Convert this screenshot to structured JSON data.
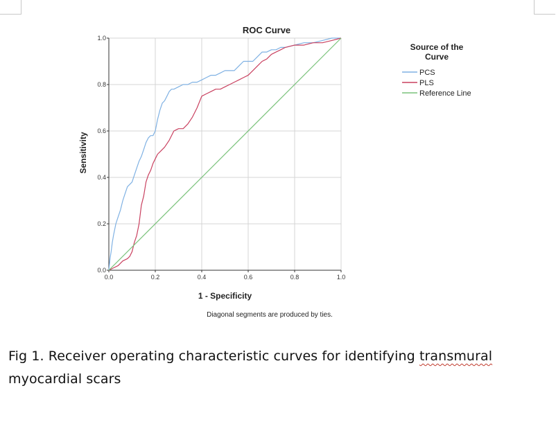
{
  "chart_data": {
    "type": "line",
    "title": "ROC Curve",
    "xlabel": "1 - Specificity",
    "ylabel": "Sensitivity",
    "xlim": [
      0,
      1
    ],
    "ylim": [
      0,
      1
    ],
    "xticks": [
      "0.0",
      "0.2",
      "0.4",
      "0.6",
      "0.8",
      "1.0"
    ],
    "yticks": [
      "0.0",
      "0.2",
      "0.4",
      "0.6",
      "0.8",
      "1.0"
    ],
    "grid": true,
    "legend_title": "Source of the Curve",
    "legend_position": "right",
    "footnote": "Diagonal segments are produced by ties.",
    "series": [
      {
        "name": "PCS",
        "color": "#7fb1e3",
        "x": [
          0,
          0.005,
          0.01,
          0.015,
          0.02,
          0.03,
          0.04,
          0.05,
          0.06,
          0.07,
          0.08,
          0.09,
          0.1,
          0.11,
          0.12,
          0.13,
          0.14,
          0.15,
          0.16,
          0.17,
          0.18,
          0.19,
          0.2,
          0.21,
          0.22,
          0.23,
          0.24,
          0.25,
          0.26,
          0.27,
          0.28,
          0.3,
          0.32,
          0.34,
          0.36,
          0.38,
          0.4,
          0.42,
          0.44,
          0.46,
          0.48,
          0.5,
          0.52,
          0.54,
          0.56,
          0.58,
          0.6,
          0.62,
          0.64,
          0.66,
          0.68,
          0.7,
          0.72,
          0.74,
          0.76,
          0.8,
          0.84,
          0.88,
          0.92,
          0.96,
          1.0
        ],
        "y": [
          0,
          0.05,
          0.08,
          0.12,
          0.15,
          0.2,
          0.23,
          0.26,
          0.3,
          0.33,
          0.36,
          0.37,
          0.38,
          0.41,
          0.44,
          0.47,
          0.49,
          0.52,
          0.55,
          0.57,
          0.58,
          0.58,
          0.6,
          0.65,
          0.69,
          0.72,
          0.73,
          0.75,
          0.77,
          0.78,
          0.78,
          0.79,
          0.8,
          0.8,
          0.81,
          0.81,
          0.82,
          0.83,
          0.84,
          0.84,
          0.85,
          0.86,
          0.86,
          0.86,
          0.88,
          0.9,
          0.9,
          0.9,
          0.92,
          0.94,
          0.94,
          0.95,
          0.95,
          0.96,
          0.96,
          0.97,
          0.98,
          0.98,
          0.99,
          1.0,
          1.0
        ]
      },
      {
        "name": "PLS",
        "color": "#c9405f",
        "x": [
          0,
          0.02,
          0.04,
          0.06,
          0.08,
          0.09,
          0.1,
          0.11,
          0.12,
          0.13,
          0.14,
          0.15,
          0.16,
          0.17,
          0.18,
          0.19,
          0.2,
          0.21,
          0.22,
          0.24,
          0.26,
          0.28,
          0.3,
          0.32,
          0.34,
          0.36,
          0.38,
          0.4,
          0.42,
          0.44,
          0.46,
          0.48,
          0.5,
          0.52,
          0.54,
          0.56,
          0.58,
          0.6,
          0.62,
          0.64,
          0.66,
          0.68,
          0.7,
          0.72,
          0.74,
          0.76,
          0.8,
          0.84,
          0.88,
          0.92,
          0.96,
          1.0
        ],
        "y": [
          0,
          0.01,
          0.02,
          0.04,
          0.05,
          0.06,
          0.08,
          0.12,
          0.15,
          0.2,
          0.28,
          0.32,
          0.38,
          0.41,
          0.43,
          0.46,
          0.48,
          0.5,
          0.51,
          0.53,
          0.56,
          0.6,
          0.61,
          0.61,
          0.63,
          0.66,
          0.7,
          0.75,
          0.76,
          0.77,
          0.78,
          0.78,
          0.79,
          0.8,
          0.81,
          0.82,
          0.83,
          0.84,
          0.86,
          0.88,
          0.9,
          0.91,
          0.93,
          0.94,
          0.95,
          0.96,
          0.97,
          0.97,
          0.98,
          0.98,
          0.99,
          1.0
        ]
      },
      {
        "name": "Reference Line",
        "color": "#79c27a",
        "x": [
          0,
          1
        ],
        "y": [
          0,
          1
        ]
      }
    ]
  },
  "caption": {
    "text_part1": "Fig 1. Receiver operating characteristic curves for identifying ",
    "text_misspelled": "transmural",
    "text_part2": " myocardial scars"
  }
}
